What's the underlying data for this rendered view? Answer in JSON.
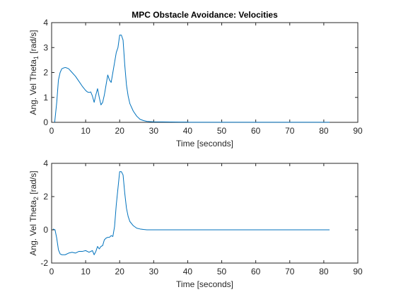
{
  "chart_data": [
    {
      "type": "line",
      "title": "MPC Obstacle Avoidance: Velocities",
      "xlabel": "Time [seconds]",
      "ylabel_main": "Ang. Vel Theta",
      "ylabel_sub": "1",
      "ylabel_unit": " [rad/s]",
      "xlim": [
        0,
        90
      ],
      "ylim": [
        0,
        4
      ],
      "xticks": [
        "0",
        "10",
        "20",
        "30",
        "40",
        "50",
        "60",
        "70",
        "80",
        "90"
      ],
      "yticks": [
        "0",
        "1",
        "2",
        "3",
        "4"
      ],
      "grid": false,
      "line_color": "#0072BD",
      "series": [
        {
          "x": [
            0.9,
            1.5,
            2,
            2.5,
            3,
            3.5,
            4,
            4.5,
            5,
            6,
            7,
            8,
            9,
            10,
            10.5,
            11,
            11.5,
            12,
            12.5,
            13,
            13.5,
            14,
            14.5,
            15,
            15.5,
            16,
            16.5,
            17,
            17.5,
            18,
            18.5,
            19,
            19.5,
            20,
            20.5,
            21,
            21.5,
            22,
            22.5,
            23,
            24,
            25,
            26,
            27,
            28,
            29,
            30,
            35,
            40,
            40.5,
            50,
            60,
            70,
            80,
            81.7
          ],
          "y": [
            0,
            0.8,
            1.7,
            2.0,
            2.15,
            2.18,
            2.2,
            2.18,
            2.15,
            2.0,
            1.85,
            1.65,
            1.45,
            1.28,
            1.22,
            1.2,
            1.22,
            1.05,
            0.8,
            1.1,
            1.35,
            1.0,
            0.7,
            0.8,
            1.1,
            1.5,
            1.9,
            1.7,
            1.6,
            2.0,
            2.4,
            2.8,
            3.0,
            3.5,
            3.5,
            3.3,
            2.3,
            1.5,
            1.05,
            0.75,
            0.45,
            0.25,
            0.12,
            0.07,
            0.04,
            0.03,
            0.02,
            0.015,
            0.01,
            0.005,
            0.005,
            0.005,
            0.005,
            0.005,
            0.005
          ]
        }
      ]
    },
    {
      "type": "line",
      "title": "",
      "xlabel": "Time [seconds]",
      "ylabel_main": "Ang. Vel Theta",
      "ylabel_sub": "2",
      "ylabel_unit": " [rad/s]",
      "xlim": [
        0,
        90
      ],
      "ylim": [
        -2,
        4
      ],
      "xticks": [
        "0",
        "10",
        "20",
        "30",
        "40",
        "50",
        "60",
        "70",
        "80",
        "90"
      ],
      "yticks": [
        "-2",
        "0",
        "2",
        "4"
      ],
      "grid": false,
      "line_color": "#0072BD",
      "series": [
        {
          "x": [
            0.4,
            1,
            1.5,
            2,
            2.5,
            3,
            4,
            5,
            6,
            7,
            8,
            9,
            10,
            11,
            12,
            12.5,
            13,
            13.5,
            14,
            14.5,
            15,
            15.5,
            16,
            16.5,
            17,
            17.5,
            18,
            18.5,
            19,
            19.5,
            20,
            20.5,
            21,
            21.5,
            22,
            22.5,
            23,
            24,
            25,
            26,
            27,
            28,
            30,
            40,
            50,
            60,
            70,
            80,
            81.7
          ],
          "y": [
            0.05,
            0.0,
            -0.5,
            -1.2,
            -1.45,
            -1.5,
            -1.5,
            -1.4,
            -1.35,
            -1.4,
            -1.3,
            -1.3,
            -1.25,
            -1.35,
            -1.25,
            -1.5,
            -1.3,
            -1.0,
            -1.15,
            -1.0,
            -0.95,
            -0.6,
            -0.5,
            -0.45,
            -0.45,
            -0.35,
            -0.4,
            0.2,
            1.5,
            2.5,
            3.5,
            3.5,
            3.3,
            2.2,
            1.3,
            0.8,
            0.5,
            0.25,
            0.1,
            0.05,
            0.02,
            0.0,
            0.0,
            0.0,
            0.0,
            0.0,
            0.0,
            0.0,
            0.0
          ]
        }
      ]
    }
  ]
}
